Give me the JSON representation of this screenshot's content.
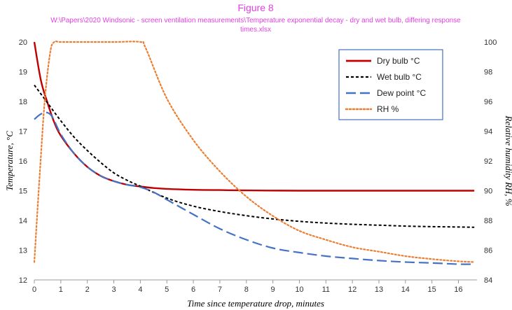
{
  "chart_data": {
    "type": "line",
    "title": "Figure 8",
    "subtitle_line1": "W:\\Papers\\2020 Windsonic - screen ventilation measurements\\Temperature exponential decay - dry and wet bulb, differing response",
    "subtitle_line2": "times.xlsx",
    "xlabel": "Time since temperature drop, minutes",
    "ylabel": "Temperature, °C",
    "y2label": "Relative humidity RH, %",
    "xlim": [
      0,
      16.7
    ],
    "ylim": [
      12,
      20
    ],
    "y2lim": [
      84,
      100
    ],
    "x_ticks": [
      "0",
      "1",
      "2",
      "3",
      "4",
      "5",
      "6",
      "7",
      "8",
      "9",
      "10",
      "11",
      "12",
      "13",
      "14",
      "15",
      "16"
    ],
    "y_ticks": [
      "12",
      "13",
      "14",
      "15",
      "16",
      "17",
      "18",
      "19",
      "20"
    ],
    "y2_ticks": [
      "84",
      "86",
      "88",
      "90",
      "92",
      "94",
      "96",
      "98",
      "100"
    ],
    "legend_position": "top-right",
    "grid": false,
    "series": [
      {
        "name": "Dry bulb °C",
        "axis": "left",
        "color": "#c00000",
        "dash": "solid",
        "x": [
          0,
          0.25,
          0.5,
          0.75,
          1,
          1.5,
          2,
          2.5,
          3,
          3.5,
          4,
          4.5,
          5,
          6,
          7,
          8,
          10,
          12,
          14,
          16,
          16.6
        ],
        "y": [
          20.0,
          18.7,
          17.95,
          17.3,
          16.85,
          16.25,
          15.8,
          15.5,
          15.32,
          15.2,
          15.14,
          15.09,
          15.06,
          15.03,
          15.02,
          15.01,
          15.0,
          15.0,
          15.0,
          15.0,
          15.0
        ]
      },
      {
        "name": "Wet bulb °C",
        "axis": "left",
        "color": "#000000",
        "dash": "short",
        "x": [
          0,
          0.5,
          1,
          1.5,
          2,
          2.5,
          3,
          3.5,
          4,
          5,
          6,
          7,
          8,
          9,
          10,
          11,
          12,
          13,
          14,
          15,
          16,
          16.6
        ],
        "y": [
          18.55,
          17.95,
          17.35,
          16.8,
          16.35,
          15.95,
          15.6,
          15.35,
          15.15,
          14.75,
          14.48,
          14.3,
          14.16,
          14.05,
          13.97,
          13.91,
          13.87,
          13.84,
          13.81,
          13.79,
          13.78,
          13.77
        ]
      },
      {
        "name": "Dew point °C",
        "axis": "left",
        "color": "#4472c4",
        "dash": "long",
        "x": [
          0,
          0.25,
          0.5,
          0.7,
          1,
          1.5,
          2,
          2.5,
          3,
          3.5,
          4,
          4.5,
          5,
          6,
          7,
          8,
          9,
          10,
          11,
          12,
          13,
          14,
          15,
          16,
          16.6
        ],
        "y": [
          17.4,
          17.58,
          17.62,
          17.45,
          16.9,
          16.25,
          15.8,
          15.5,
          15.32,
          15.2,
          15.12,
          14.95,
          14.7,
          14.2,
          13.72,
          13.35,
          13.07,
          12.92,
          12.8,
          12.72,
          12.65,
          12.6,
          12.57,
          12.53,
          12.53
        ]
      },
      {
        "name": "RH %",
        "axis": "right",
        "color": "#ed7d31",
        "dash": "dot",
        "x": [
          0,
          0.2,
          0.4,
          0.6,
          0.75,
          1,
          2,
          3,
          4,
          4.2,
          5,
          6,
          7,
          8,
          9,
          10,
          11,
          12,
          13,
          14,
          15,
          16,
          16.6
        ],
        "y": [
          85.2,
          91.0,
          96.2,
          99.3,
          100,
          100,
          100,
          100,
          100,
          99.6,
          96.2,
          93.4,
          91.3,
          89.6,
          88.3,
          87.3,
          86.7,
          86.2,
          85.9,
          85.6,
          85.4,
          85.25,
          85.2
        ]
      }
    ]
  }
}
